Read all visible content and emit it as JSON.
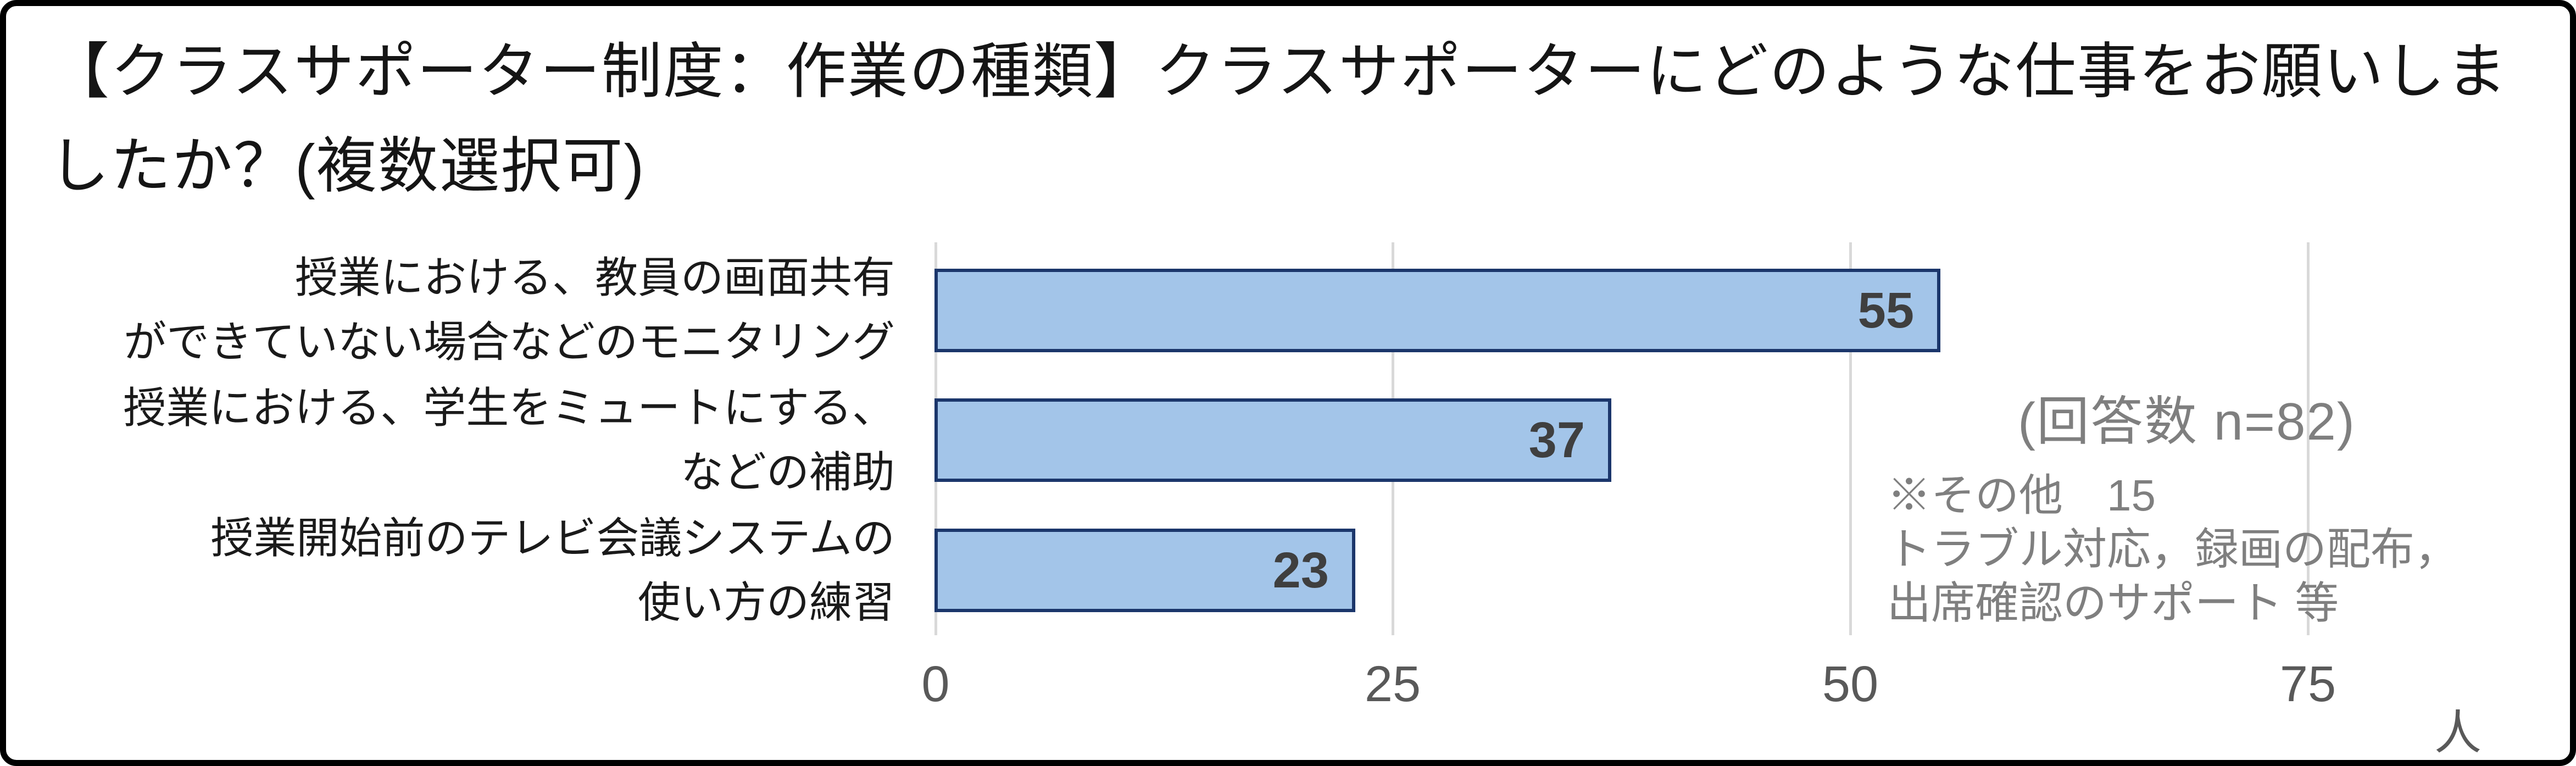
{
  "colors": {
    "bar_fill": "#A3C5E9",
    "bar_border": "#1B366B",
    "gridline": "#D9D9D9",
    "value_label": "#3F3F3F",
    "tick_label": "#595959",
    "annotation": "#7F7F7F",
    "frame_border": "#000000"
  },
  "chart_data": {
    "type": "bar",
    "orientation": "horizontal",
    "title": "【クラスサポーター制度：作業の種類】クラスサポーターにどのような仕事をお願いしましたか？(複数選択可)",
    "title_lines": [
      "【クラスサポーター制度：作業の種類】クラスサポーターにどのような仕事をお願いしま",
      "したか？(複数選択可)"
    ],
    "categories": [
      {
        "label": "授業における、教員の画面共有ができていない場合などのモニタリング",
        "lines": [
          "授業における、教員の画面共有",
          "ができていない場合などのモニタリング"
        ],
        "value": 55
      },
      {
        "label": "授業における、学生をミュートにする、などの補助",
        "lines": [
          "授業における、学生をミュートにする、",
          "などの補助"
        ],
        "value": 37
      },
      {
        "label": "授業開始前のテレビ会議システムの使い方の練習",
        "lines": [
          "授業開始前のテレビ会議システムの",
          "使い方の練習"
        ],
        "value": 23
      }
    ],
    "values": [
      55,
      37,
      23
    ],
    "xticks": [
      0,
      25,
      50,
      75
    ],
    "xlim": [
      0,
      87
    ],
    "x_unit": "人",
    "grid": "vertical-gridlines-on",
    "legend": "none",
    "notes": {
      "respondents": "(回答数 n=82)",
      "other_lines": [
        "※その他　15",
        "トラブル対応，録画の配布，",
        "出席確認のサポート 等"
      ]
    }
  }
}
